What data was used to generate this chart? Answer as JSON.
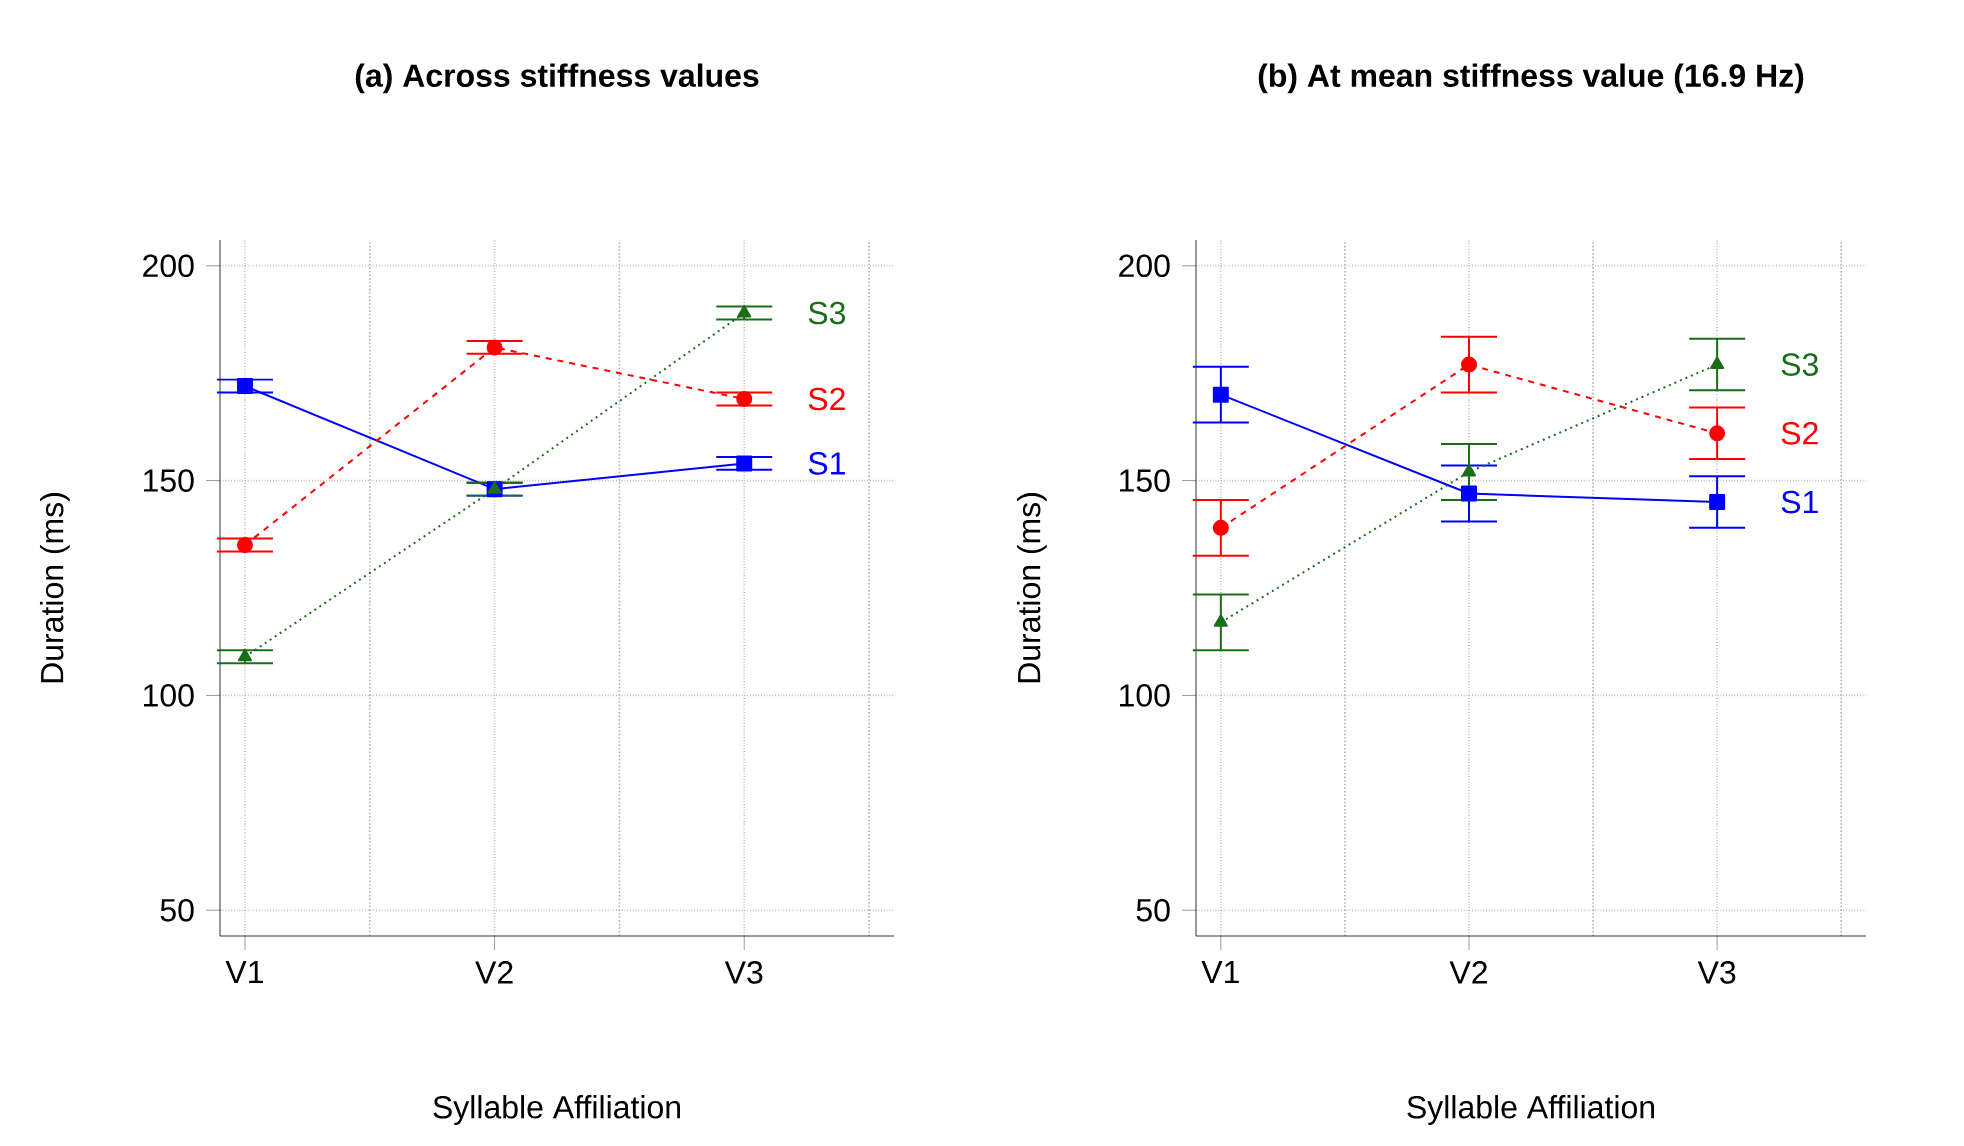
{
  "chart_data": [
    {
      "type": "line",
      "title": "(a) Across stiffness values",
      "xlabel": "Syllable Affiliation",
      "ylabel": "Duration (ms)",
      "categories": [
        "V1",
        "V2",
        "V3"
      ],
      "ylim": [
        44,
        206
      ],
      "yticks": [
        50,
        100,
        150,
        200
      ],
      "grid": true,
      "series": [
        {
          "name": "S1",
          "color": "#0000ff",
          "values": [
            172,
            148,
            154
          ],
          "errors": [
            1.5,
            1.5,
            1.5
          ],
          "marker": "square",
          "line_style": "solid"
        },
        {
          "name": "S2",
          "color": "#ff0000",
          "values": [
            135,
            181,
            169
          ],
          "errors": [
            1.5,
            1.5,
            1.5
          ],
          "marker": "circle",
          "line_style": "dashed"
        },
        {
          "name": "S3",
          "color": "#1a6e1a",
          "values": [
            109,
            148,
            189
          ],
          "errors": [
            1.5,
            1.5,
            1.5
          ],
          "marker": "triangle",
          "line_style": "dotted"
        }
      ]
    },
    {
      "type": "line",
      "title": "(b) At mean stiffness value (16.9 Hz)",
      "xlabel": "Syllable Affiliation",
      "ylabel": "Duration (ms)",
      "categories": [
        "V1",
        "V2",
        "V3"
      ],
      "ylim": [
        44,
        206
      ],
      "yticks": [
        50,
        100,
        150,
        200
      ],
      "grid": true,
      "series": [
        {
          "name": "S1",
          "color": "#0000ff",
          "values": [
            170,
            147,
            145
          ],
          "errors": [
            6.5,
            6.5,
            6
          ],
          "marker": "square",
          "line_style": "solid"
        },
        {
          "name": "S2",
          "color": "#ff0000",
          "values": [
            139,
            177,
            161
          ],
          "errors": [
            6.5,
            6.5,
            6
          ],
          "marker": "circle",
          "line_style": "dashed"
        },
        {
          "name": "S3",
          "color": "#1a6e1a",
          "values": [
            117,
            152,
            177
          ],
          "errors": [
            6.5,
            6.5,
            6
          ],
          "marker": "triangle",
          "line_style": "dotted"
        }
      ]
    }
  ]
}
